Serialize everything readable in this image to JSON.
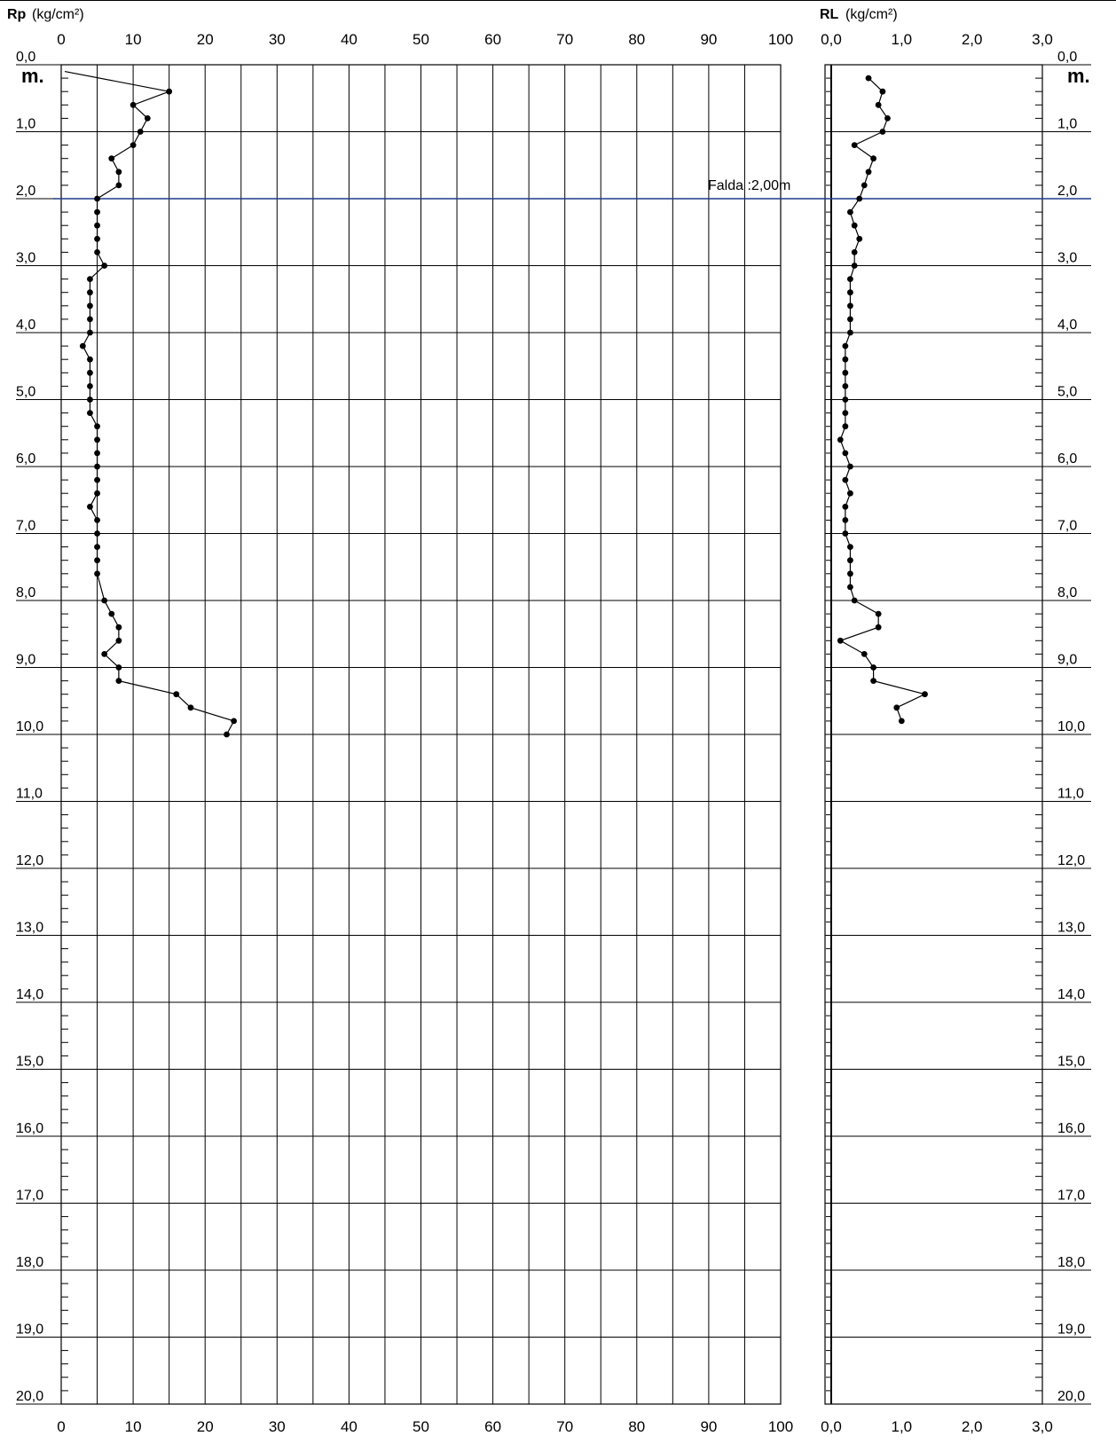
{
  "chart_data": [
    {
      "type": "line",
      "panel": "Rp",
      "title_label": "Rp",
      "unit": "(kg/cm²)",
      "depth_unit": "m.",
      "x_ticks": [
        "0",
        "10",
        "20",
        "30",
        "40",
        "50",
        "60",
        "70",
        "80",
        "90",
        "100"
      ],
      "xlim": [
        0,
        100
      ],
      "ylim": [
        0,
        20
      ],
      "y_inverted": true,
      "grid": true,
      "series": [
        {
          "x": [
            0,
            15,
            10,
            12,
            11,
            10,
            7,
            8,
            8,
            5,
            5,
            5,
            5,
            5,
            6,
            4,
            4,
            4,
            4,
            4,
            3,
            4,
            4,
            4,
            4,
            4,
            5,
            5,
            5,
            5,
            5,
            5,
            4,
            5,
            5,
            5,
            5,
            5,
            6,
            7,
            8,
            8,
            6,
            8,
            8,
            16,
            18,
            24,
            23
          ],
          "y": [
            0.1,
            0.4,
            0.6,
            0.8,
            1.0,
            1.2,
            1.4,
            1.6,
            1.8,
            2.0,
            2.2,
            2.4,
            2.6,
            2.8,
            3.0,
            3.2,
            3.4,
            3.6,
            3.8,
            4.0,
            4.2,
            4.4,
            4.6,
            4.8,
            5.0,
            5.2,
            5.4,
            5.6,
            5.8,
            6.0,
            6.2,
            6.4,
            6.6,
            6.8,
            7.0,
            7.2,
            7.4,
            7.6,
            8.0,
            8.2,
            8.4,
            8.6,
            8.8,
            9.0,
            9.2,
            9.4,
            9.6,
            9.8,
            10.0
          ]
        }
      ],
      "annotation": "Falda :2,00m",
      "annotation_depth": 2.0
    },
    {
      "type": "line",
      "panel": "RL",
      "title_label": "RL",
      "unit": "(kg/cm²)",
      "depth_unit": "m.",
      "x_ticks": [
        "0,0",
        "1,0",
        "2,0",
        "3,0"
      ],
      "xlim": [
        0,
        3
      ],
      "ylim": [
        0,
        20
      ],
      "y_inverted": true,
      "series": [
        {
          "x": [
            0.53,
            0.73,
            0.67,
            0.8,
            0.73,
            0.33,
            0.6,
            0.53,
            0.47,
            0.4,
            0.27,
            0.33,
            0.4,
            0.33,
            0.33,
            0.27,
            0.27,
            0.27,
            0.27,
            0.27,
            0.2,
            0.2,
            0.2,
            0.2,
            0.2,
            0.2,
            0.2,
            0.13,
            0.2,
            0.27,
            0.2,
            0.27,
            0.2,
            0.2,
            0.2,
            0.27,
            0.27,
            0.27,
            0.27,
            0.33,
            0.67,
            0.67,
            0.13,
            0.47,
            0.6,
            0.6,
            1.33,
            0.93,
            1.0
          ],
          "y": [
            0.2,
            0.4,
            0.6,
            0.8,
            1.0,
            1.2,
            1.4,
            1.6,
            1.8,
            2.0,
            2.2,
            2.4,
            2.6,
            2.8,
            3.0,
            3.2,
            3.4,
            3.6,
            3.8,
            4.0,
            4.2,
            4.4,
            4.6,
            4.8,
            5.0,
            5.2,
            5.4,
            5.6,
            5.8,
            6.0,
            6.2,
            6.4,
            6.6,
            6.8,
            7.0,
            7.2,
            7.4,
            7.6,
            7.8,
            8.0,
            8.2,
            8.4,
            8.6,
            8.8,
            9.0,
            9.2,
            9.4,
            9.6,
            9.8
          ]
        }
      ]
    }
  ],
  "depth_labels": [
    "0,0",
    "1,0",
    "2,0",
    "3,0",
    "4,0",
    "5,0",
    "6,0",
    "7,0",
    "8,0",
    "9,0",
    "10,0",
    "11,0",
    "12,0",
    "13,0",
    "14,0",
    "15,0",
    "16,0",
    "17,0",
    "18,0",
    "19,0",
    "20,0"
  ],
  "colors": {
    "falda_line": "#1f3a8a",
    "ink": "#000000"
  }
}
